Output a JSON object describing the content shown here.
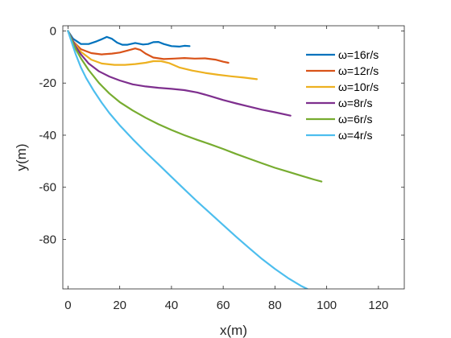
{
  "chart_data": {
    "type": "line",
    "title": "",
    "xlabel": "x(m)",
    "ylabel": "y(m)",
    "xlim": [
      -2,
      130
    ],
    "ylim": [
      -99,
      2
    ],
    "xticks": [
      0,
      20,
      40,
      60,
      80,
      100,
      120
    ],
    "yticks": [
      0,
      -20,
      -40,
      -60,
      -80
    ],
    "xtick_labels": [
      "0",
      "20",
      "40",
      "60",
      "80",
      "100",
      "120"
    ],
    "ytick_labels": [
      "0",
      "-20",
      "-40",
      "-60",
      "-80"
    ],
    "grid": false,
    "legend_position": "top-right",
    "series": [
      {
        "name": "ω=16r/s",
        "color": "#0072BD",
        "points": [
          [
            0,
            0
          ],
          [
            2,
            -3
          ],
          [
            5,
            -5
          ],
          [
            8,
            -5
          ],
          [
            11,
            -4
          ],
          [
            13,
            -3.2
          ],
          [
            15,
            -2.3
          ],
          [
            17,
            -3
          ],
          [
            19,
            -4.5
          ],
          [
            21,
            -5.3
          ],
          [
            23,
            -5.3
          ],
          [
            26,
            -4.6
          ],
          [
            29,
            -5.2
          ],
          [
            31,
            -5
          ],
          [
            33,
            -4.3
          ],
          [
            35,
            -4.2
          ],
          [
            37,
            -5
          ],
          [
            40,
            -5.8
          ],
          [
            43,
            -6
          ],
          [
            45,
            -5.7
          ],
          [
            47,
            -5.8
          ]
        ]
      },
      {
        "name": "ω=12r/s",
        "color": "#D95319",
        "points": [
          [
            0,
            0
          ],
          [
            2,
            -4
          ],
          [
            5,
            -7
          ],
          [
            9,
            -8.5
          ],
          [
            13,
            -9
          ],
          [
            17,
            -8.7
          ],
          [
            20,
            -8.3
          ],
          [
            23,
            -7.5
          ],
          [
            26,
            -6.7
          ],
          [
            28,
            -7.3
          ],
          [
            30,
            -8.7
          ],
          [
            33,
            -10.2
          ],
          [
            37,
            -10.8
          ],
          [
            41,
            -10.6
          ],
          [
            45,
            -10.4
          ],
          [
            49,
            -10.6
          ],
          [
            53,
            -10.5
          ],
          [
            57,
            -11
          ],
          [
            60,
            -11.8
          ],
          [
            62,
            -12.2
          ]
        ]
      },
      {
        "name": "ω=10r/s",
        "color": "#EDB120",
        "points": [
          [
            0,
            0
          ],
          [
            2,
            -4
          ],
          [
            5,
            -8
          ],
          [
            9,
            -11
          ],
          [
            13,
            -12.5
          ],
          [
            18,
            -13
          ],
          [
            22,
            -13
          ],
          [
            26,
            -12.7
          ],
          [
            30,
            -12.2
          ],
          [
            33,
            -11.6
          ],
          [
            36,
            -11.6
          ],
          [
            39,
            -12.3
          ],
          [
            43,
            -14
          ],
          [
            48,
            -15.2
          ],
          [
            53,
            -16.1
          ],
          [
            58,
            -16.8
          ],
          [
            63,
            -17.4
          ],
          [
            68,
            -17.9
          ],
          [
            73,
            -18.5
          ]
        ]
      },
      {
        "name": "ω=8r/s",
        "color": "#7E2F8E",
        "points": [
          [
            0,
            0
          ],
          [
            1.5,
            -3
          ],
          [
            3,
            -6
          ],
          [
            5,
            -9
          ],
          [
            8,
            -12.5
          ],
          [
            12,
            -15.5
          ],
          [
            16,
            -17.5
          ],
          [
            20,
            -19
          ],
          [
            25,
            -20.5
          ],
          [
            30,
            -21.3
          ],
          [
            35,
            -21.8
          ],
          [
            40,
            -22.2
          ],
          [
            45,
            -22.7
          ],
          [
            50,
            -23.6
          ],
          [
            55,
            -25
          ],
          [
            60,
            -26.5
          ],
          [
            65,
            -27.8
          ],
          [
            70,
            -29
          ],
          [
            75,
            -30.2
          ],
          [
            80,
            -31.2
          ],
          [
            86,
            -32.5
          ]
        ]
      },
      {
        "name": "ω=6r/s",
        "color": "#77AC30",
        "points": [
          [
            0,
            0
          ],
          [
            1.5,
            -3.5
          ],
          [
            3,
            -7
          ],
          [
            5,
            -10.5
          ],
          [
            8,
            -15
          ],
          [
            12,
            -20
          ],
          [
            16,
            -24
          ],
          [
            20,
            -27.3
          ],
          [
            25,
            -30.5
          ],
          [
            30,
            -33.3
          ],
          [
            35,
            -35.8
          ],
          [
            40,
            -38
          ],
          [
            45,
            -40
          ],
          [
            50,
            -41.8
          ],
          [
            55,
            -43.5
          ],
          [
            60,
            -45.3
          ],
          [
            65,
            -47.2
          ],
          [
            70,
            -49
          ],
          [
            75,
            -50.8
          ],
          [
            80,
            -52.5
          ],
          [
            85,
            -54
          ],
          [
            90,
            -55.5
          ],
          [
            95,
            -57
          ],
          [
            98,
            -57.8
          ]
        ]
      },
      {
        "name": "ω=4r/s",
        "color": "#4DBEEE",
        "points": [
          [
            0,
            0
          ],
          [
            1,
            -3
          ],
          [
            2,
            -6
          ],
          [
            3,
            -9
          ],
          [
            5,
            -14
          ],
          [
            7,
            -18
          ],
          [
            10,
            -23
          ],
          [
            13,
            -27.5
          ],
          [
            16,
            -31.5
          ],
          [
            20,
            -36.2
          ],
          [
            25,
            -41.5
          ],
          [
            30,
            -46.5
          ],
          [
            35,
            -51.2
          ],
          [
            40,
            -56
          ],
          [
            45,
            -60.8
          ],
          [
            50,
            -65.5
          ],
          [
            55,
            -70
          ],
          [
            60,
            -74.5
          ],
          [
            65,
            -79
          ],
          [
            70,
            -83.3
          ],
          [
            75,
            -87.5
          ],
          [
            80,
            -91.3
          ],
          [
            85,
            -94.8
          ],
          [
            90,
            -97.8
          ],
          [
            92.5,
            -99
          ]
        ]
      }
    ]
  }
}
